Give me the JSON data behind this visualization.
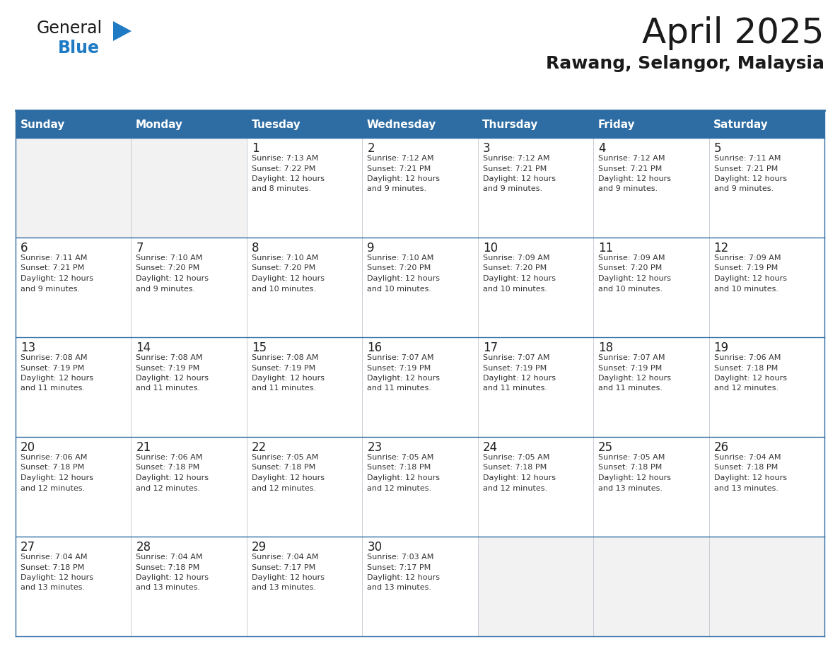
{
  "title": "April 2025",
  "subtitle": "Rawang, Selangor, Malaysia",
  "header_bg": "#2E6DA4",
  "header_text_color": "#FFFFFF",
  "day_number_color": "#222222",
  "text_color": "#333333",
  "border_color": "#2E6DA4",
  "grid_line_color": "#C0C8D0",
  "days_of_week": [
    "Sunday",
    "Monday",
    "Tuesday",
    "Wednesday",
    "Thursday",
    "Friday",
    "Saturday"
  ],
  "weeks": [
    [
      {
        "day": "",
        "sunrise": "",
        "sunset": "",
        "daylight_mins": ""
      },
      {
        "day": "",
        "sunrise": "",
        "sunset": "",
        "daylight_mins": ""
      },
      {
        "day": "1",
        "sunrise": "7:13 AM",
        "sunset": "7:22 PM",
        "daylight_mins": "8"
      },
      {
        "day": "2",
        "sunrise": "7:12 AM",
        "sunset": "7:21 PM",
        "daylight_mins": "9"
      },
      {
        "day": "3",
        "sunrise": "7:12 AM",
        "sunset": "7:21 PM",
        "daylight_mins": "9"
      },
      {
        "day": "4",
        "sunrise": "7:12 AM",
        "sunset": "7:21 PM",
        "daylight_mins": "9"
      },
      {
        "day": "5",
        "sunrise": "7:11 AM",
        "sunset": "7:21 PM",
        "daylight_mins": "9"
      }
    ],
    [
      {
        "day": "6",
        "sunrise": "7:11 AM",
        "sunset": "7:21 PM",
        "daylight_mins": "9"
      },
      {
        "day": "7",
        "sunrise": "7:10 AM",
        "sunset": "7:20 PM",
        "daylight_mins": "9"
      },
      {
        "day": "8",
        "sunrise": "7:10 AM",
        "sunset": "7:20 PM",
        "daylight_mins": "10"
      },
      {
        "day": "9",
        "sunrise": "7:10 AM",
        "sunset": "7:20 PM",
        "daylight_mins": "10"
      },
      {
        "day": "10",
        "sunrise": "7:09 AM",
        "sunset": "7:20 PM",
        "daylight_mins": "10"
      },
      {
        "day": "11",
        "sunrise": "7:09 AM",
        "sunset": "7:20 PM",
        "daylight_mins": "10"
      },
      {
        "day": "12",
        "sunrise": "7:09 AM",
        "sunset": "7:19 PM",
        "daylight_mins": "10"
      }
    ],
    [
      {
        "day": "13",
        "sunrise": "7:08 AM",
        "sunset": "7:19 PM",
        "daylight_mins": "11"
      },
      {
        "day": "14",
        "sunrise": "7:08 AM",
        "sunset": "7:19 PM",
        "daylight_mins": "11"
      },
      {
        "day": "15",
        "sunrise": "7:08 AM",
        "sunset": "7:19 PM",
        "daylight_mins": "11"
      },
      {
        "day": "16",
        "sunrise": "7:07 AM",
        "sunset": "7:19 PM",
        "daylight_mins": "11"
      },
      {
        "day": "17",
        "sunrise": "7:07 AM",
        "sunset": "7:19 PM",
        "daylight_mins": "11"
      },
      {
        "day": "18",
        "sunrise": "7:07 AM",
        "sunset": "7:19 PM",
        "daylight_mins": "11"
      },
      {
        "day": "19",
        "sunrise": "7:06 AM",
        "sunset": "7:18 PM",
        "daylight_mins": "12"
      }
    ],
    [
      {
        "day": "20",
        "sunrise": "7:06 AM",
        "sunset": "7:18 PM",
        "daylight_mins": "12"
      },
      {
        "day": "21",
        "sunrise": "7:06 AM",
        "sunset": "7:18 PM",
        "daylight_mins": "12"
      },
      {
        "day": "22",
        "sunrise": "7:05 AM",
        "sunset": "7:18 PM",
        "daylight_mins": "12"
      },
      {
        "day": "23",
        "sunrise": "7:05 AM",
        "sunset": "7:18 PM",
        "daylight_mins": "12"
      },
      {
        "day": "24",
        "sunrise": "7:05 AM",
        "sunset": "7:18 PM",
        "daylight_mins": "12"
      },
      {
        "day": "25",
        "sunrise": "7:05 AM",
        "sunset": "7:18 PM",
        "daylight_mins": "13"
      },
      {
        "day": "26",
        "sunrise": "7:04 AM",
        "sunset": "7:18 PM",
        "daylight_mins": "13"
      }
    ],
    [
      {
        "day": "27",
        "sunrise": "7:04 AM",
        "sunset": "7:18 PM",
        "daylight_mins": "13"
      },
      {
        "day": "28",
        "sunrise": "7:04 AM",
        "sunset": "7:18 PM",
        "daylight_mins": "13"
      },
      {
        "day": "29",
        "sunrise": "7:04 AM",
        "sunset": "7:17 PM",
        "daylight_mins": "13"
      },
      {
        "day": "30",
        "sunrise": "7:03 AM",
        "sunset": "7:17 PM",
        "daylight_mins": "13"
      },
      {
        "day": "",
        "sunrise": "",
        "sunset": "",
        "daylight_mins": ""
      },
      {
        "day": "",
        "sunrise": "",
        "sunset": "",
        "daylight_mins": ""
      },
      {
        "day": "",
        "sunrise": "",
        "sunset": "",
        "daylight_mins": ""
      }
    ]
  ],
  "logo_color1": "#1a1a1a",
  "logo_color2": "#1E7BC4",
  "logo_triangle_color": "#1E7BC4",
  "title_fontsize": 36,
  "subtitle_fontsize": 18,
  "header_fontsize": 11,
  "day_num_fontsize": 12,
  "cell_text_fontsize": 8
}
